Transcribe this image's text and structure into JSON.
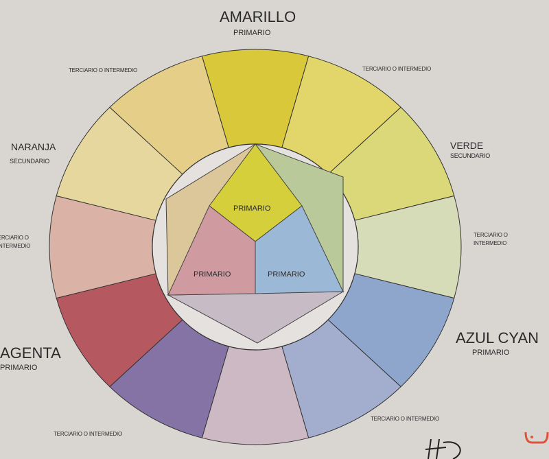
{
  "labels": {
    "amarillo": "AMARILLO",
    "amarillo_sub": "PRIMARIO",
    "verde": "VERDE",
    "verde_sub": "SECUNDARIO",
    "azul": "AZUL CYAN",
    "azul_sub": "PRIMARIO",
    "magenta": "AGENTA",
    "magenta_sub": "PRIMARIO",
    "naranja": "NARANJA",
    "naranja_sub": "SECUNDARIO",
    "terciario_top_left": "TERCIARIO O INTERMEDIO",
    "terciario_top_right": "TERCIARIO O INTERMEDIO",
    "terciario_right_1": "TERCIARIO O",
    "terciario_right_2": "INTERMEDIO",
    "terciario_left_1": "TERCIARIO O",
    "terciario_left_2": "INTERMEDIO",
    "terciario_bottom_left": "TERCIARIO O INTERMEDIO",
    "terciario_bottom_right": "TERCIARIO O INTERMEDIO",
    "inner_yellow": "PRIMARIO",
    "inner_red": "PRIMARIO",
    "inner_blue": "PRIMARIO"
  },
  "segment_colors": [
    "#d8c83a",
    "#e2d66a",
    "#dad878",
    "#d6dbb8",
    "#8fa6cc",
    "#a3aece",
    "#cdb9c4",
    "#8573a6",
    "#b5585f",
    "#dbb3a6",
    "#e6d79e",
    "#e5cf88"
  ],
  "inner_colors": {
    "yellow": "#d6cf3c",
    "red": "#cf9aa0",
    "blue": "#9bb8d6",
    "green": "#b9c99a",
    "mauve": "#c7bcc6",
    "orange": "#dcc79a"
  },
  "signature": "HD"
}
